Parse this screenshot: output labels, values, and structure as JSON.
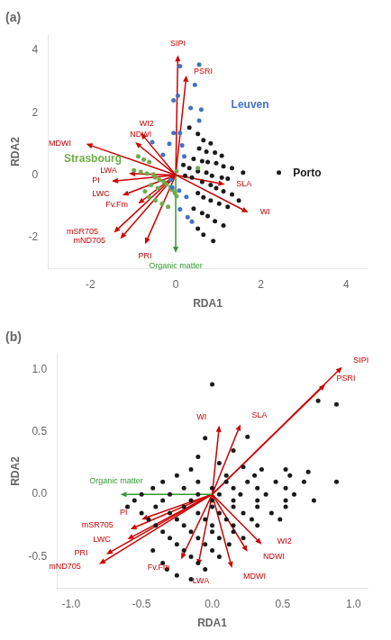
{
  "chart_data": [
    {
      "type": "scatter",
      "title": "(a)",
      "xlabel": "RDA1",
      "ylabel": "RDA2",
      "xlim": [
        -3.0,
        4.5
      ],
      "ylim": [
        -3.0,
        4.5
      ],
      "xticks": [
        -2,
        0,
        2,
        4
      ],
      "yticks": [
        -2,
        0,
        2,
        4
      ],
      "grid": false,
      "series": [
        {
          "name": "Leuven",
          "color": "#4472c4",
          "label_x": 1.3,
          "label_y": 2.25,
          "points": [
            [
              0.1,
              3.5
            ],
            [
              0.55,
              3.55
            ],
            [
              0.45,
              2.9
            ],
            [
              0.05,
              2.55
            ],
            [
              -0.05,
              2.4
            ],
            [
              0.35,
              2.15
            ],
            [
              0.6,
              2.1
            ],
            [
              0.55,
              1.75
            ],
            [
              -0.05,
              1.35
            ],
            [
              0.1,
              1.35
            ],
            [
              -0.55,
              1.05
            ],
            [
              -0.15,
              1.0
            ],
            [
              0.15,
              0.95
            ],
            [
              -0.3,
              0.65
            ],
            [
              0.2,
              0.6
            ],
            [
              -0.12,
              -0.15
            ],
            [
              -0.08,
              -0.4
            ],
            [
              0.08,
              -0.5
            ],
            [
              0.25,
              -0.7
            ],
            [
              0.1,
              -1.1
            ],
            [
              0.28,
              -1.35
            ],
            [
              0.38,
              -1.5
            ]
          ]
        },
        {
          "name": "Strasbourg",
          "color": "#70ad47",
          "label_x": -2.62,
          "label_y": 0.52,
          "points": [
            [
              -0.88,
              0.6
            ],
            [
              -0.75,
              0.5
            ],
            [
              -0.62,
              0.42
            ],
            [
              -0.98,
              0.15
            ],
            [
              -0.82,
              0.1
            ],
            [
              -0.68,
              0.05
            ],
            [
              -0.52,
              0.02
            ],
            [
              -0.48,
              -0.08
            ],
            [
              -0.38,
              -0.15
            ],
            [
              -0.28,
              -0.22
            ],
            [
              -0.22,
              -0.3
            ],
            [
              -0.12,
              -0.38
            ],
            [
              -0.08,
              -0.48
            ],
            [
              -0.02,
              -0.58
            ],
            [
              0.02,
              -0.68
            ],
            [
              -0.58,
              -0.32
            ],
            [
              -0.42,
              -0.42
            ],
            [
              -0.72,
              -0.52
            ],
            [
              -0.62,
              -0.72
            ],
            [
              -0.48,
              -0.82
            ],
            [
              -0.32,
              -0.92
            ],
            [
              -0.18,
              -1.02
            ],
            [
              0.52,
              0.22
            ],
            [
              0.02,
              0.12
            ]
          ]
        },
        {
          "name": "Porto",
          "color": "#1a1a1a",
          "label_x": 2.75,
          "label_y": 0.05,
          "points": [
            [
              0.32,
              1.52
            ],
            [
              0.52,
              1.32
            ],
            [
              0.65,
              1.12
            ],
            [
              0.82,
              1.02
            ],
            [
              0.55,
              0.85
            ],
            [
              0.72,
              0.75
            ],
            [
              0.92,
              0.72
            ],
            [
              1.08,
              0.62
            ],
            [
              0.42,
              0.52
            ],
            [
              0.62,
              0.45
            ],
            [
              0.75,
              0.42
            ],
            [
              0.95,
              0.38
            ],
            [
              1.12,
              0.28
            ],
            [
              1.32,
              0.22
            ],
            [
              0.52,
              0.12
            ],
            [
              0.72,
              0.08
            ],
            [
              0.85,
              -0.02
            ],
            [
              1.08,
              -0.08
            ],
            [
              1.22,
              -0.12
            ],
            [
              1.58,
              0.08
            ],
            [
              0.62,
              -0.22
            ],
            [
              0.82,
              -0.32
            ],
            [
              0.95,
              -0.42
            ],
            [
              1.12,
              -0.52
            ],
            [
              1.32,
              -0.62
            ],
            [
              0.52,
              -0.58
            ],
            [
              0.65,
              -0.72
            ],
            [
              0.82,
              -0.82
            ],
            [
              1.02,
              -0.92
            ],
            [
              1.22,
              -1.02
            ],
            [
              0.42,
              -1.08
            ],
            [
              0.62,
              -1.22
            ],
            [
              0.75,
              -1.32
            ],
            [
              0.92,
              -1.48
            ],
            [
              1.12,
              -1.62
            ],
            [
              0.52,
              -1.72
            ],
            [
              0.65,
              -1.92
            ],
            [
              0.88,
              -2.12
            ],
            [
              2.42,
              0.08
            ],
            [
              0.32,
              0.22
            ],
            [
              0.18,
              0.32
            ],
            [
              0.22,
              -0.02
            ],
            [
              0.38,
              -0.08
            ],
            [
              1.48,
              -0.82
            ]
          ]
        }
      ],
      "arrows": [
        {
          "name": "SIPI",
          "x": 0.05,
          "y": 3.85,
          "label_x": 0.05,
          "label_y": 4.1,
          "color": "#cc0000"
        },
        {
          "name": "PSRI",
          "x": 0.25,
          "y": 3.2,
          "label_x": 0.42,
          "label_y": 3.32,
          "color": "#cc0000"
        },
        {
          "name": "WI2",
          "x": -0.82,
          "y": 1.35,
          "label_x": -0.68,
          "label_y": 1.52,
          "color": "#cc0000"
        },
        {
          "name": "NDWI",
          "x": -0.95,
          "y": 1.05,
          "label_x": -0.82,
          "label_y": 1.18,
          "color": "#cc0000"
        },
        {
          "name": "MDWI",
          "x": -2.1,
          "y": 1.0,
          "label_x": -2.45,
          "label_y": 1.02,
          "color": "#cc0000"
        },
        {
          "name": "LWA",
          "x": -1.1,
          "y": 0.05,
          "label_x": -1.38,
          "label_y": 0.15,
          "color": "#cc0000"
        },
        {
          "name": "PI",
          "x": -1.5,
          "y": -0.2,
          "label_x": -1.78,
          "label_y": -0.18,
          "color": "#cc0000"
        },
        {
          "name": "LWC",
          "x": -1.25,
          "y": -0.65,
          "label_x": -1.55,
          "label_y": -0.62,
          "color": "#cc0000"
        },
        {
          "name": "Fv.Fm",
          "x": -0.88,
          "y": -0.92,
          "label_x": -1.12,
          "label_y": -0.95,
          "color": "#cc0000"
        },
        {
          "name": "SLA",
          "x": 1.15,
          "y": -0.3,
          "label_x": 1.42,
          "label_y": -0.28,
          "color": "#cc0000"
        },
        {
          "name": "WI",
          "x": 1.7,
          "y": -1.2,
          "label_x": 1.98,
          "label_y": -1.18,
          "color": "#cc0000"
        },
        {
          "name": "mSR705",
          "x": -1.45,
          "y": -1.85,
          "label_x": -1.82,
          "label_y": -1.82,
          "color": "#cc0000"
        },
        {
          "name": "mND705",
          "x": -1.3,
          "y": -2.05,
          "label_x": -1.65,
          "label_y": -2.1,
          "color": "#cc0000"
        },
        {
          "name": "PRI",
          "x": -0.72,
          "y": -2.22,
          "label_x": -0.72,
          "label_y": -2.48,
          "color": "#cc0000"
        },
        {
          "name": "Organic matter",
          "x": 0.0,
          "y": -2.5,
          "label_x": 0.0,
          "label_y": -2.78,
          "color": "#339933"
        }
      ]
    },
    {
      "type": "scatter",
      "title": "(b)",
      "xlabel": "RDA1",
      "ylabel": "RDA2",
      "xlim": [
        -1.1,
        1.1
      ],
      "ylim": [
        -0.75,
        1.12
      ],
      "xticks": [
        {
          "value": -1.0,
          "label": "-1.0"
        },
        -0.5,
        {
          "value": 0.0,
          "label": "0.0"
        },
        0.5,
        {
          "value": 1.0,
          "label": "1.0"
        }
      ],
      "yticks": [
        -0.5,
        {
          "value": 0.0,
          "label": "0.0"
        },
        0.5,
        {
          "value": 1.0,
          "label": "1.0"
        }
      ],
      "grid": false,
      "series": [
        {
          "color": "#1a1a1a",
          "points": [
            [
              0.0,
              0.88
            ],
            [
              -0.05,
              0.45
            ],
            [
              0.25,
              0.46
            ],
            [
              0.15,
              0.35
            ],
            [
              -0.1,
              0.3
            ],
            [
              0.05,
              0.25
            ],
            [
              0.22,
              0.22
            ],
            [
              -0.15,
              0.2
            ],
            [
              0.35,
              0.2
            ],
            [
              0.52,
              0.2
            ],
            [
              0.68,
              0.18
            ],
            [
              -0.25,
              0.15
            ],
            [
              0.1,
              0.15
            ],
            [
              0.3,
              0.15
            ],
            [
              0.55,
              0.15
            ],
            [
              -0.35,
              0.1
            ],
            [
              -0.1,
              0.1
            ],
            [
              0.1,
              0.1
            ],
            [
              0.25,
              0.1
            ],
            [
              0.45,
              0.1
            ],
            [
              0.65,
              0.1
            ],
            [
              0.88,
              0.1
            ],
            [
              -0.42,
              0.05
            ],
            [
              -0.2,
              0.05
            ],
            [
              0.0,
              0.05
            ],
            [
              0.15,
              0.05
            ],
            [
              0.32,
              0.05
            ],
            [
              0.52,
              0.05
            ],
            [
              0.75,
              0.75
            ],
            [
              0.88,
              0.72
            ],
            [
              -0.5,
              0.0
            ],
            [
              -0.3,
              0.0
            ],
            [
              -0.1,
              0.0
            ],
            [
              0.05,
              0.0
            ],
            [
              0.2,
              0.0
            ],
            [
              0.38,
              0.0
            ],
            [
              0.58,
              0.0
            ],
            [
              -0.55,
              -0.05
            ],
            [
              -0.35,
              -0.05
            ],
            [
              -0.15,
              -0.05
            ],
            [
              0.0,
              -0.05
            ],
            [
              0.15,
              -0.05
            ],
            [
              0.32,
              -0.05
            ],
            [
              0.52,
              -0.05
            ],
            [
              0.72,
              -0.05
            ],
            [
              -0.6,
              -0.1
            ],
            [
              -0.4,
              -0.1
            ],
            [
              -0.2,
              -0.1
            ],
            [
              0.0,
              -0.1
            ],
            [
              0.15,
              -0.1
            ],
            [
              0.32,
              -0.1
            ],
            [
              0.52,
              -0.1
            ],
            [
              -0.5,
              -0.15
            ],
            [
              -0.3,
              -0.15
            ],
            [
              -0.1,
              -0.15
            ],
            [
              0.05,
              -0.15
            ],
            [
              0.22,
              -0.15
            ],
            [
              0.42,
              -0.15
            ],
            [
              -0.45,
              -0.2
            ],
            [
              -0.25,
              -0.2
            ],
            [
              -0.05,
              -0.2
            ],
            [
              0.1,
              -0.2
            ],
            [
              0.28,
              -0.2
            ],
            [
              0.48,
              -0.2
            ],
            [
              -0.4,
              -0.25
            ],
            [
              -0.2,
              -0.25
            ],
            [
              0.0,
              -0.25
            ],
            [
              0.15,
              -0.25
            ],
            [
              0.32,
              -0.25
            ],
            [
              -0.35,
              -0.3
            ],
            [
              -0.15,
              -0.3
            ],
            [
              0.0,
              -0.3
            ],
            [
              0.15,
              -0.3
            ],
            [
              -0.3,
              -0.35
            ],
            [
              -0.1,
              -0.35
            ],
            [
              0.05,
              -0.35
            ],
            [
              0.22,
              -0.35
            ],
            [
              -0.25,
              -0.4
            ],
            [
              -0.05,
              -0.4
            ],
            [
              0.12,
              -0.4
            ],
            [
              -0.2,
              -0.45
            ],
            [
              0.0,
              -0.45
            ],
            [
              -0.15,
              -0.5
            ],
            [
              0.05,
              -0.5
            ],
            [
              -0.35,
              -0.55
            ],
            [
              -0.1,
              -0.55
            ],
            [
              -0.32,
              -0.6
            ],
            [
              -0.05,
              -0.6
            ],
            [
              -0.25,
              -0.65
            ],
            [
              -0.15,
              -0.68
            ],
            [
              -0.42,
              -0.45
            ]
          ]
        }
      ],
      "arrows": [
        {
          "name": "SIPI",
          "x": 0.92,
          "y": 1.02,
          "label_x": 1.0,
          "label_y": 1.07,
          "color": "#cc0000"
        },
        {
          "name": "PSRI",
          "x": 0.8,
          "y": 0.88,
          "label_x": 0.88,
          "label_y": 0.93,
          "color": "#cc0000"
        },
        {
          "name": "WI",
          "x": 0.05,
          "y": 0.55,
          "label_x": -0.04,
          "label_y": 0.62,
          "color": "#cc0000"
        },
        {
          "name": "SLA",
          "x": 0.2,
          "y": 0.56,
          "label_x": 0.28,
          "label_y": 0.63,
          "color": "#cc0000"
        },
        {
          "name": "WI2",
          "x": 0.35,
          "y": -0.4,
          "label_x": 0.46,
          "label_y": -0.38,
          "color": "#cc0000"
        },
        {
          "name": "NDWI",
          "x": 0.25,
          "y": -0.46,
          "label_x": 0.36,
          "label_y": -0.5,
          "color": "#cc0000"
        },
        {
          "name": "MDWI",
          "x": 0.14,
          "y": -0.59,
          "label_x": 0.22,
          "label_y": -0.66,
          "color": "#cc0000"
        },
        {
          "name": "LWA",
          "x": -0.1,
          "y": -0.57,
          "label_x": -0.08,
          "label_y": -0.66,
          "color": "#cc0000"
        },
        {
          "name": "Fv.Fm",
          "x": -0.22,
          "y": -0.52,
          "label_x": -0.3,
          "label_y": -0.59,
          "color": "#cc0000"
        },
        {
          "name": "PI",
          "x": -0.5,
          "y": -0.2,
          "label_x": -0.6,
          "label_y": -0.15,
          "color": "#cc0000"
        },
        {
          "name": "mSR705",
          "x": -0.58,
          "y": -0.28,
          "label_x": -0.7,
          "label_y": -0.25,
          "color": "#cc0000"
        },
        {
          "name": "LWC",
          "x": -0.6,
          "y": -0.36,
          "label_x": -0.72,
          "label_y": -0.36,
          "color": "#cc0000"
        },
        {
          "name": "PRI",
          "x": -0.75,
          "y": -0.48,
          "label_x": -0.88,
          "label_y": -0.47,
          "color": "#cc0000"
        },
        {
          "name": "mND705",
          "x": -0.8,
          "y": -0.56,
          "label_x": -0.93,
          "label_y": -0.58,
          "color": "#cc0000"
        },
        {
          "name": "Organic matter",
          "x": -0.65,
          "y": 0.0,
          "label_x": -0.68,
          "label_y": 0.07,
          "color": "#339933"
        }
      ]
    }
  ]
}
